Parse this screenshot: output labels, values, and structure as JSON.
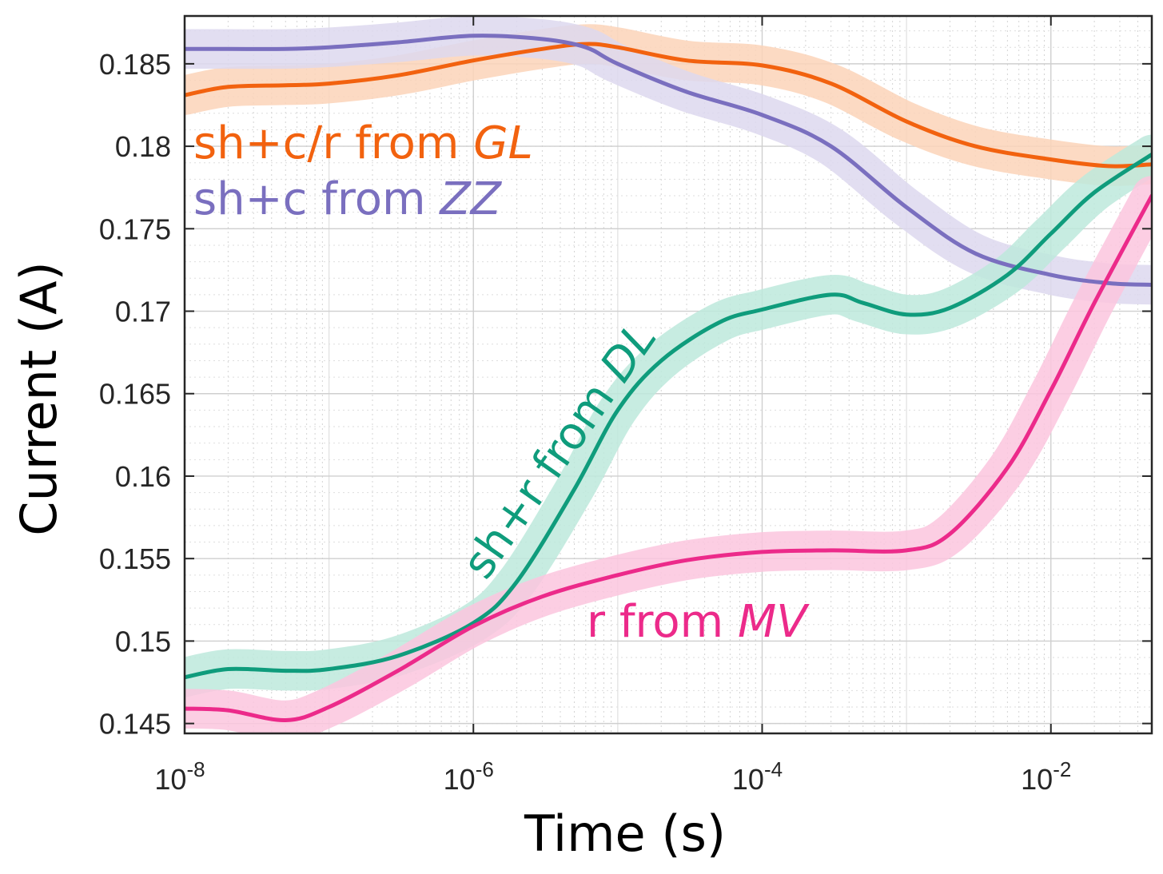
{
  "chart_data": {
    "type": "line",
    "xscale": "log",
    "xlabel": "Time (s)",
    "ylabel": "Current (A)",
    "xlim": [
      1e-08,
      0.05
    ],
    "ylim": [
      0.1444,
      0.1879
    ],
    "grid": true,
    "legend": "none",
    "x_ticks": [
      {
        "value": 1e-08,
        "base": "10",
        "exp": "-8"
      },
      {
        "value": 1e-06,
        "base": "10",
        "exp": "-6"
      },
      {
        "value": 0.0001,
        "base": "10",
        "exp": "-4"
      },
      {
        "value": 0.01,
        "base": "10",
        "exp": "-2"
      }
    ],
    "y_ticks": [
      {
        "value": 0.145,
        "label": "0.145"
      },
      {
        "value": 0.15,
        "label": "0.15"
      },
      {
        "value": 0.155,
        "label": "0.155"
      },
      {
        "value": 0.16,
        "label": "0.16"
      },
      {
        "value": 0.165,
        "label": "0.165"
      },
      {
        "value": 0.17,
        "label": "0.17"
      },
      {
        "value": 0.175,
        "label": "0.175"
      },
      {
        "value": 0.18,
        "label": "0.18"
      },
      {
        "value": 0.185,
        "label": "0.185"
      }
    ],
    "series": [
      {
        "key": "gl",
        "annotation": {
          "prefix": "sh+c/r from ",
          "name": "GL"
        },
        "color": "#f2620f",
        "band_color": "#fbd3b8",
        "band_halfwidth": 0.0012,
        "x": [
          1e-08,
          2e-08,
          5e-08,
          1e-07,
          3e-07,
          1e-06,
          3e-06,
          6e-06,
          1e-05,
          3e-05,
          0.0001,
          0.0003,
          0.001,
          0.003,
          0.01,
          0.025,
          0.05
        ],
        "y": [
          0.1831,
          0.1836,
          0.1837,
          0.1838,
          0.1843,
          0.1852,
          0.1859,
          0.1862,
          0.186,
          0.1852,
          0.1849,
          0.1838,
          0.1815,
          0.18,
          0.1792,
          0.1788,
          0.1789
        ]
      },
      {
        "key": "zz",
        "annotation": {
          "prefix": "sh+c from ",
          "name": "ZZ"
        },
        "color": "#7a6fbf",
        "band_color": "#ddd8ee",
        "band_halfwidth": 0.0012,
        "x": [
          1e-08,
          2e-08,
          5e-08,
          1e-07,
          3e-07,
          1e-06,
          3e-06,
          6e-06,
          1e-05,
          3e-05,
          0.0001,
          0.0003,
          0.001,
          0.003,
          0.01,
          0.025,
          0.05
        ],
        "y": [
          0.1859,
          0.1859,
          0.1859,
          0.186,
          0.1863,
          0.1867,
          0.1865,
          0.186,
          0.185,
          0.1833,
          0.1819,
          0.18,
          0.1763,
          0.1735,
          0.1722,
          0.1717,
          0.1716
        ]
      },
      {
        "key": "dl",
        "annotation": {
          "prefix": "sh+r from ",
          "name": "DL"
        },
        "color": "#0f9c7c",
        "band_color": "#bde9dc",
        "band_halfwidth": 0.0012,
        "x": [
          1e-08,
          2e-08,
          5e-08,
          1e-07,
          3e-07,
          1e-06,
          2e-06,
          5e-06,
          1e-05,
          2e-05,
          5e-05,
          0.0001,
          0.0003,
          0.0005,
          0.001,
          0.002,
          0.005,
          0.01,
          0.02,
          0.05
        ],
        "y": [
          0.1478,
          0.1483,
          0.1482,
          0.1483,
          0.1491,
          0.1511,
          0.1536,
          0.1592,
          0.164,
          0.167,
          0.1693,
          0.1701,
          0.171,
          0.1705,
          0.1698,
          0.1702,
          0.1722,
          0.1747,
          0.1772,
          0.1795
        ]
      },
      {
        "key": "mv",
        "annotation": {
          "prefix": "r from ",
          "name": "MV"
        },
        "color": "#ec2a8a",
        "band_color": "#fbc6de",
        "band_halfwidth": 0.0012,
        "x": [
          1e-08,
          2e-08,
          5e-08,
          1e-07,
          3e-07,
          1e-06,
          3e-06,
          1e-05,
          3e-05,
          0.0001,
          0.0003,
          0.001,
          0.002,
          0.005,
          0.01,
          0.02,
          0.05
        ],
        "y": [
          0.1459,
          0.1458,
          0.1452,
          0.146,
          0.1482,
          0.1509,
          0.1527,
          0.154,
          0.1549,
          0.1554,
          0.1555,
          0.1555,
          0.1565,
          0.1605,
          0.1652,
          0.1705,
          0.177
        ]
      }
    ]
  }
}
